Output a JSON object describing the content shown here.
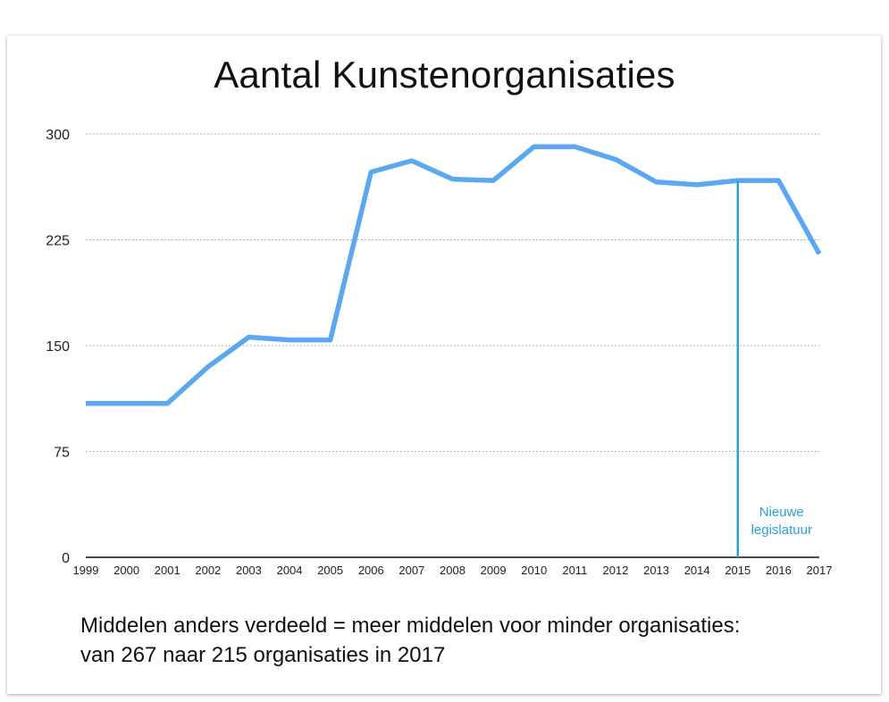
{
  "chart_data": {
    "type": "line",
    "title": "Aantal Kunstenorganisaties",
    "x": [
      "1999",
      "2000",
      "2001",
      "2002",
      "2003",
      "2004",
      "2005",
      "2006",
      "2007",
      "2008",
      "2009",
      "2010",
      "2011",
      "2012",
      "2013",
      "2014",
      "2015",
      "2016",
      "2017"
    ],
    "series": [
      {
        "values": [
          109,
          109,
          109,
          135,
          156,
          154,
          154,
          273,
          281,
          268,
          267,
          291,
          291,
          282,
          266,
          264,
          267,
          267,
          215
        ]
      }
    ],
    "ylim": [
      0,
      300
    ],
    "yticks": [
      0,
      75,
      150,
      225,
      300
    ],
    "grid": "horizontal dotted",
    "line_color": "#5aa8f0",
    "annotation": {
      "x": "2015",
      "lines": [
        "Nieuwe",
        "legislatuur"
      ],
      "color": "#2a9fe0"
    }
  },
  "caption": {
    "line1": "Middelen anders verdeeld = meer middelen voor minder organisaties:",
    "line2": "van 267 naar 215 organisaties in 2017"
  }
}
